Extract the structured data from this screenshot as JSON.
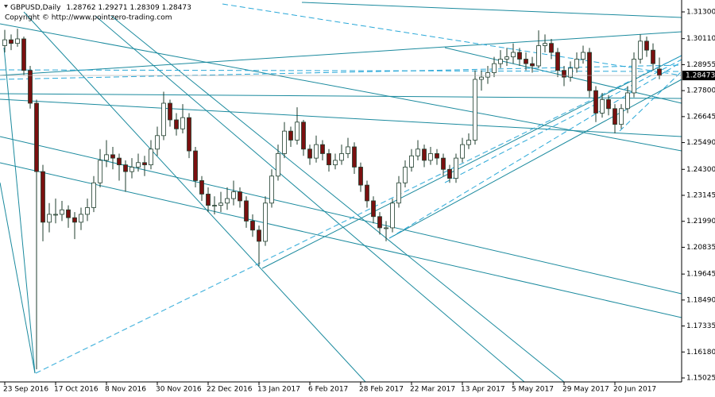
{
  "chart_data": {
    "type": "candlestick",
    "title": "GBPUSD,Daily",
    "subtitle": "Copyright © http://www.pointzero-trading.com",
    "up_color": "#ffffff",
    "down_color": "#7a1010",
    "outline_color": "#1f3d2c",
    "line_color": "#1b8a9e",
    "ylim": [
      1.14849,
      1.31653
    ],
    "yticks": [
      {
        "value": 1.313,
        "label": "1.31300"
      },
      {
        "value": 1.3011,
        "label": "1.30110"
      },
      {
        "value": 1.28955,
        "label": "1.28955"
      },
      {
        "value": 1.278,
        "label": "1.27800"
      },
      {
        "value": 1.26645,
        "label": "1.26645"
      },
      {
        "value": 1.2549,
        "label": "1.25490"
      },
      {
        "value": 1.243,
        "label": "1.24300"
      },
      {
        "value": 1.23145,
        "label": "1.23145"
      },
      {
        "value": 1.2199,
        "label": "1.21990"
      },
      {
        "value": 1.20835,
        "label": "1.20835"
      },
      {
        "value": 1.19645,
        "label": "1.19645"
      },
      {
        "value": 1.1849,
        "label": "1.18490"
      },
      {
        "value": 1.17335,
        "label": "1.17335"
      },
      {
        "value": 1.1618,
        "label": "1.16180"
      },
      {
        "value": 1.15025,
        "label": "1.15025"
      }
    ],
    "categories": [
      "23 Sep 2016",
      null,
      null,
      null,
      null,
      null,
      null,
      null,
      "17 Oct 2016",
      null,
      null,
      null,
      null,
      null,
      null,
      null,
      "8 Nov 2016",
      null,
      null,
      null,
      null,
      null,
      null,
      null,
      "30 Nov 2016",
      null,
      null,
      null,
      null,
      null,
      null,
      null,
      "22 Dec 2016",
      null,
      null,
      null,
      null,
      null,
      null,
      null,
      "13 Jan 2017",
      null,
      null,
      null,
      null,
      null,
      null,
      null,
      "6 Feb 2017",
      null,
      null,
      null,
      null,
      null,
      null,
      null,
      "28 Feb 2017",
      null,
      null,
      null,
      null,
      null,
      null,
      null,
      "22 Mar 2017",
      null,
      null,
      null,
      null,
      null,
      null,
      null,
      "13 Apr 2017",
      null,
      null,
      null,
      null,
      null,
      null,
      null,
      "5 May 2017",
      null,
      null,
      null,
      null,
      null,
      null,
      null,
      "29 May 2017",
      null,
      null,
      null,
      null,
      null,
      null,
      null,
      "20 Jun 2017",
      null,
      null,
      null,
      null,
      null,
      null,
      null
    ],
    "candles": [
      [
        1.298,
        1.305,
        1.295,
        1.3006
      ],
      [
        1.3006,
        1.303,
        1.296,
        1.299
      ],
      [
        1.299,
        1.3055,
        1.2975,
        1.301
      ],
      [
        1.301,
        1.302,
        1.285,
        1.287
      ],
      [
        1.287,
        1.289,
        1.27,
        1.2724
      ],
      [
        1.2724,
        1.274,
        1.1541,
        1.242
      ],
      [
        1.242,
        1.245,
        1.211,
        1.2195
      ],
      [
        1.2195,
        1.228,
        1.215,
        1.223
      ],
      [
        1.223,
        1.23,
        1.219,
        1.223
      ],
      [
        1.223,
        1.229,
        1.22,
        1.225
      ],
      [
        1.225,
        1.227,
        1.217,
        1.2215
      ],
      [
        1.2215,
        1.224,
        1.212,
        1.2195
      ],
      [
        1.2195,
        1.226,
        1.216,
        1.223
      ],
      [
        1.223,
        1.23,
        1.22,
        1.226
      ],
      [
        1.226,
        1.24,
        1.224,
        1.237
      ],
      [
        1.237,
        1.252,
        1.235,
        1.247
      ],
      [
        1.247,
        1.256,
        1.244,
        1.2495
      ],
      [
        1.2495,
        1.253,
        1.243,
        1.248
      ],
      [
        1.248,
        1.25,
        1.238,
        1.245
      ],
      [
        1.245,
        1.247,
        1.233,
        1.242
      ],
      [
        1.242,
        1.248,
        1.239,
        1.244
      ],
      [
        1.244,
        1.25,
        1.242,
        1.246
      ],
      [
        1.246,
        1.249,
        1.24,
        1.245
      ],
      [
        1.245,
        1.256,
        1.243,
        1.252
      ],
      [
        1.252,
        1.262,
        1.249,
        1.258
      ],
      [
        1.258,
        1.2775,
        1.256,
        1.2724
      ],
      [
        1.2724,
        1.274,
        1.262,
        1.265
      ],
      [
        1.265,
        1.268,
        1.258,
        1.261
      ],
      [
        1.261,
        1.272,
        1.259,
        1.266
      ],
      [
        1.266,
        1.268,
        1.248,
        1.2512
      ],
      [
        1.2512,
        1.253,
        1.235,
        1.238
      ],
      [
        1.238,
        1.24,
        1.229,
        1.232
      ],
      [
        1.232,
        1.235,
        1.224,
        1.227
      ],
      [
        1.227,
        1.231,
        1.223,
        1.227
      ],
      [
        1.227,
        1.233,
        1.224,
        1.228
      ],
      [
        1.228,
        1.235,
        1.225,
        1.23
      ],
      [
        1.23,
        1.238,
        1.227,
        1.233
      ],
      [
        1.233,
        1.235,
        1.226,
        1.229
      ],
      [
        1.229,
        1.231,
        1.217,
        1.22
      ],
      [
        1.22,
        1.223,
        1.213,
        1.216
      ],
      [
        1.216,
        1.218,
        1.2,
        1.211
      ],
      [
        1.211,
        1.231,
        1.209,
        1.228
      ],
      [
        1.228,
        1.243,
        1.226,
        1.24
      ],
      [
        1.24,
        1.254,
        1.238,
        1.25
      ],
      [
        1.25,
        1.264,
        1.248,
        1.26
      ],
      [
        1.26,
        1.262,
        1.253,
        1.256
      ],
      [
        1.256,
        1.2706,
        1.254,
        1.264
      ],
      [
        1.264,
        1.265,
        1.249,
        1.252
      ],
      [
        1.252,
        1.254,
        1.245,
        1.248
      ],
      [
        1.248,
        1.258,
        1.246,
        1.254
      ],
      [
        1.254,
        1.256,
        1.247,
        1.25
      ],
      [
        1.25,
        1.252,
        1.242,
        1.245
      ],
      [
        1.245,
        1.25,
        1.243,
        1.247
      ],
      [
        1.247,
        1.254,
        1.245,
        1.25
      ],
      [
        1.25,
        1.257,
        1.248,
        1.253
      ],
      [
        1.253,
        1.255,
        1.241,
        1.244
      ],
      [
        1.244,
        1.246,
        1.233,
        1.236
      ],
      [
        1.236,
        1.238,
        1.226,
        1.229
      ],
      [
        1.229,
        1.231,
        1.219,
        1.222
      ],
      [
        1.222,
        1.224,
        1.214,
        1.217
      ],
      [
        1.217,
        1.22,
        1.211,
        1.217
      ],
      [
        1.217,
        1.23,
        1.215,
        1.228
      ],
      [
        1.228,
        1.24,
        1.226,
        1.237
      ],
      [
        1.237,
        1.247,
        1.235,
        1.244
      ],
      [
        1.244,
        1.252,
        1.242,
        1.249
      ],
      [
        1.249,
        1.256,
        1.247,
        1.252
      ],
      [
        1.252,
        1.254,
        1.244,
        1.247
      ],
      [
        1.247,
        1.253,
        1.245,
        1.25
      ],
      [
        1.25,
        1.252,
        1.245,
        1.248
      ],
      [
        1.248,
        1.25,
        1.24,
        1.243
      ],
      [
        1.243,
        1.245,
        1.237,
        1.239
      ],
      [
        1.239,
        1.25,
        1.237,
        1.248
      ],
      [
        1.248,
        1.257,
        1.246,
        1.254
      ],
      [
        1.254,
        1.259,
        1.252,
        1.256
      ],
      [
        1.256,
        1.287,
        1.254,
        1.283
      ],
      [
        1.283,
        1.287,
        1.278,
        1.284
      ],
      [
        1.284,
        1.289,
        1.281,
        1.286
      ],
      [
        1.286,
        1.293,
        1.284,
        1.29
      ],
      [
        1.29,
        1.296,
        1.288,
        1.292
      ],
      [
        1.292,
        1.297,
        1.289,
        1.293
      ],
      [
        1.293,
        1.299,
        1.29,
        1.295
      ],
      [
        1.295,
        1.297,
        1.289,
        1.292
      ],
      [
        1.292,
        1.295,
        1.287,
        1.29
      ],
      [
        1.29,
        1.293,
        1.286,
        1.289
      ],
      [
        1.289,
        1.3048,
        1.288,
        1.298
      ],
      [
        1.298,
        1.303,
        1.295,
        1.299
      ],
      [
        1.299,
        1.301,
        1.292,
        1.295
      ],
      [
        1.295,
        1.297,
        1.284,
        1.287
      ],
      [
        1.287,
        1.289,
        1.28,
        1.284
      ],
      [
        1.284,
        1.291,
        1.282,
        1.288
      ],
      [
        1.288,
        1.295,
        1.286,
        1.292
      ],
      [
        1.292,
        1.298,
        1.29,
        1.295
      ],
      [
        1.295,
        1.297,
        1.275,
        1.278
      ],
      [
        1.278,
        1.28,
        1.264,
        1.268
      ],
      [
        1.268,
        1.277,
        1.266,
        1.274
      ],
      [
        1.274,
        1.276,
        1.267,
        1.27
      ],
      [
        1.27,
        1.272,
        1.259,
        1.263
      ],
      [
        1.263,
        1.272,
        1.261,
        1.27
      ],
      [
        1.27,
        1.28,
        1.268,
        1.277
      ],
      [
        1.277,
        1.295,
        1.275,
        1.292
      ],
      [
        1.292,
        1.303,
        1.29,
        1.3
      ],
      [
        1.3,
        1.302,
        1.293,
        1.296
      ],
      [
        1.296,
        1.299,
        1.287,
        1.29
      ],
      [
        1.28762,
        1.29271,
        1.28309,
        1.28473
      ]
    ]
  }
}
